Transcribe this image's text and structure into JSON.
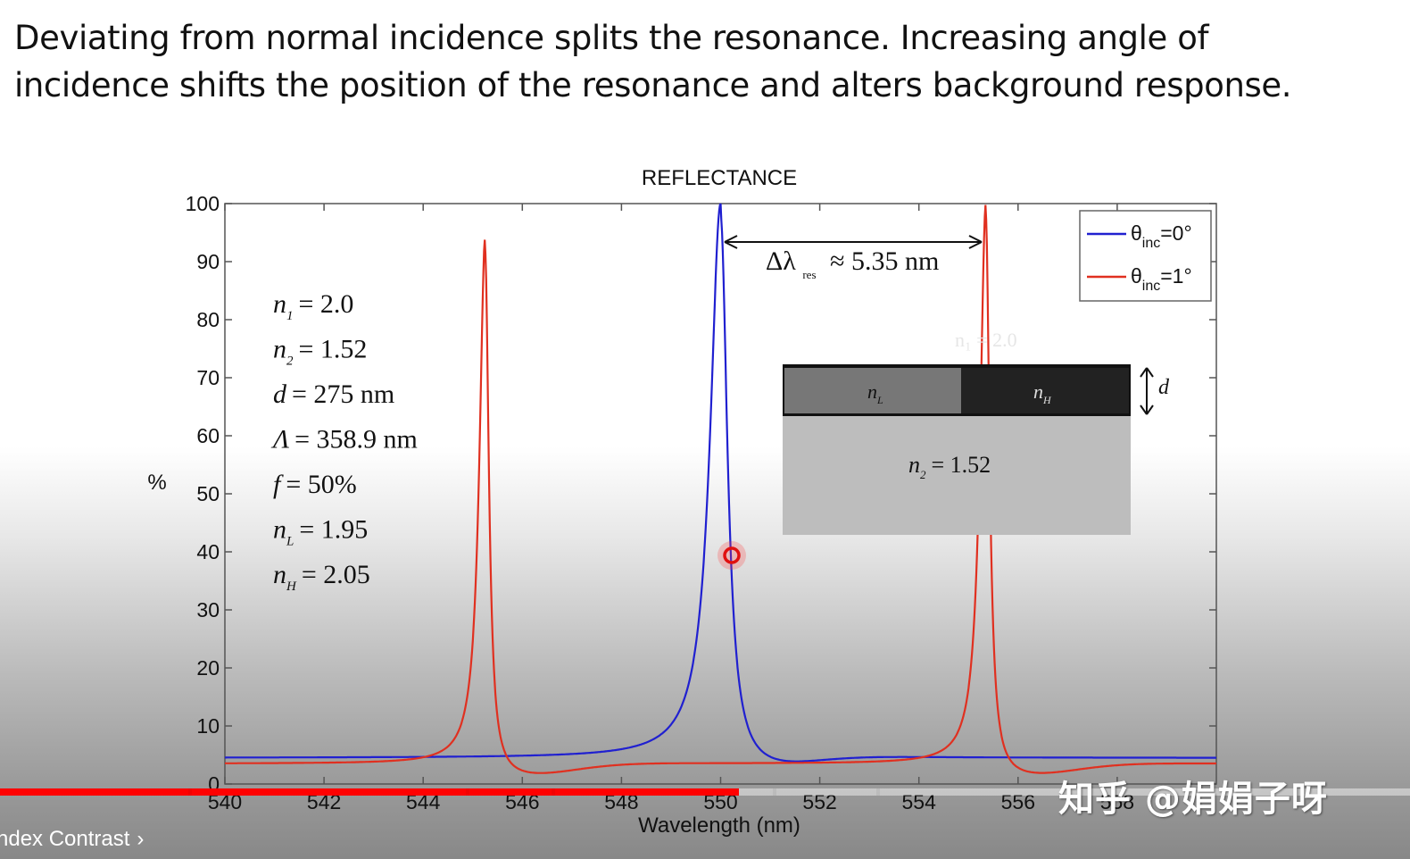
{
  "caption": {
    "line1": "Deviating from normal incidence splits the  resonance.  Increasing angle of",
    "line2": "incidence shifts the position of the resonance and alters background response."
  },
  "chart_data": {
    "type": "line",
    "title": "REFLECTANCE",
    "xlabel": "Wavelength (nm)",
    "ylabel": "%",
    "xlim": [
      540,
      560
    ],
    "ylim": [
      0,
      100
    ],
    "xticks": [
      "540",
      "542",
      "544",
      "546",
      "548",
      "550",
      "552",
      "554",
      "556",
      "558"
    ],
    "yticks": [
      "0",
      "10",
      "20",
      "30",
      "40",
      "50",
      "60",
      "70",
      "80",
      "90",
      "100"
    ],
    "grid": false,
    "legend_position": "top-right",
    "series": [
      {
        "name": "θinc=0°",
        "label_main": "θ",
        "label_sub": "inc",
        "label_tail": "=0°",
        "color": "#2020d0",
        "peaks": [
          {
            "x": 550.0,
            "y": 100,
            "hw": 0.22
          }
        ],
        "baseline": 4.5
      },
      {
        "name": "θinc=1°",
        "label_main": "θ",
        "label_sub": "inc",
        "label_tail": "=1°",
        "color": "#e03020",
        "peaks": [
          {
            "x": 545.25,
            "y": 94,
            "hw": 0.12
          },
          {
            "x": 555.35,
            "y": 100,
            "hw": 0.12
          }
        ],
        "baseline": 3.5
      }
    ],
    "annotations": {
      "delta": "Δλ",
      "delta_sub": "res",
      "delta_value": "≈ 5.35  nm",
      "params": [
        {
          "sym": "n",
          "sub": "1",
          "val": "= 2.0"
        },
        {
          "sym": "n",
          "sub": "2",
          "val": "= 1.52"
        },
        {
          "sym": "d",
          "sub": "",
          "val": "= 275  nm"
        },
        {
          "sym": "Λ",
          "sub": "",
          "val": "= 358.9  nm"
        },
        {
          "sym": "f",
          "sub": "",
          "val": "= 50%"
        },
        {
          "sym": "n",
          "sub": "L",
          "val": "= 1.95"
        },
        {
          "sym": "n",
          "sub": "H",
          "val": "= 2.05"
        }
      ],
      "inset": {
        "layer_L": "n",
        "layer_L_sub": "L",
        "layer_H": "n",
        "layer_H_sub": "H",
        "substrate": "n",
        "substrate_sub": "2",
        "substrate_val": "= 1.52",
        "thickness": "d",
        "faded_label": "n₁ = 2.0"
      }
    }
  },
  "player": {
    "progress_fraction": 0.524,
    "chapter_title": "ndex Contrast",
    "chevron": "›"
  },
  "watermark": "知乎 @娟娟子呀",
  "colors": {
    "played": "#ff0000",
    "blue_curve": "#2020d0",
    "red_curve": "#e03020"
  }
}
